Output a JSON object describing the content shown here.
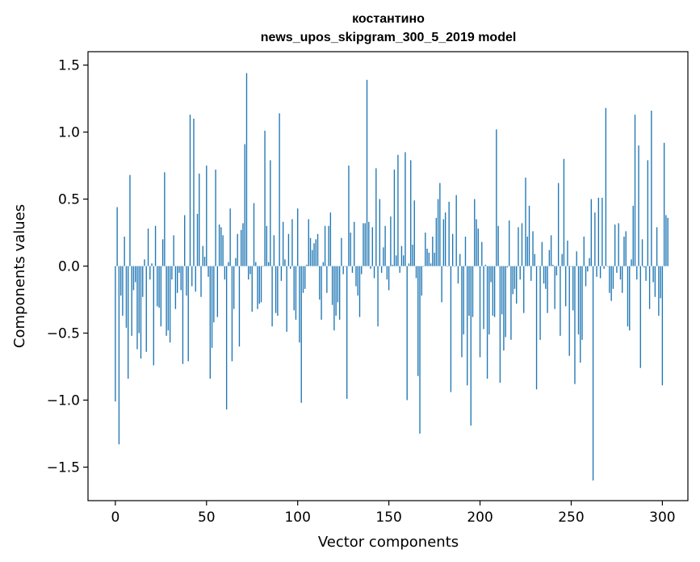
{
  "chart_data": {
    "type": "bar",
    "title": [
      "костантино",
      "news_upos_skipgram_300_5_2019 model"
    ],
    "xlabel": "Vector components",
    "ylabel": "Components values",
    "xlim": [
      -15,
      314
    ],
    "ylim": [
      -1.75,
      1.6
    ],
    "xticks": [
      0,
      50,
      100,
      150,
      200,
      250,
      300
    ],
    "xtick_labels": [
      "0",
      "50",
      "100",
      "150",
      "200",
      "250",
      "300"
    ],
    "yticks": [
      1.5,
      1.0,
      0.5,
      0.0,
      -0.5,
      -1.0,
      -1.5
    ],
    "ytick_labels": [
      "1.5",
      "1.0",
      "0.5",
      "0.0",
      "−0.5",
      "−1.0",
      "−1.5"
    ],
    "grid": false,
    "bar_color": "#1f77b4",
    "values": [
      -1.01,
      0.44,
      -1.33,
      -0.22,
      -0.37,
      0.22,
      -0.46,
      -0.84,
      0.68,
      -0.52,
      -0.18,
      -0.12,
      -0.62,
      -0.5,
      -0.69,
      -0.23,
      0.05,
      -0.64,
      0.28,
      -0.1,
      0.02,
      -0.74,
      0.3,
      -0.3,
      -0.31,
      -0.45,
      0.2,
      0.7,
      -0.52,
      -0.48,
      -0.57,
      -0.1,
      0.23,
      -0.32,
      -0.2,
      -0.05,
      -0.18,
      -0.73,
      0.38,
      -0.22,
      -0.71,
      1.13,
      -0.15,
      1.1,
      -0.19,
      0.39,
      0.69,
      -0.23,
      0.15,
      0.07,
      0.75,
      -0.08,
      -0.84,
      -0.61,
      -0.42,
      0.72,
      -0.38,
      0.31,
      0.29,
      0.23,
      -0.1,
      -1.07,
      0.03,
      0.43,
      -0.71,
      -0.32,
      0.06,
      0.24,
      -0.6,
      0.27,
      0.32,
      0.91,
      1.44,
      -0.1,
      -0.06,
      -0.34,
      0.47,
      0.03,
      -0.32,
      -0.28,
      -0.27,
      0.0,
      1.01,
      0.3,
      0.03,
      0.79,
      -0.45,
      0.23,
      -0.35,
      -0.37,
      1.14,
      -0.11,
      0.33,
      0.05,
      -0.49,
      0.24,
      -0.02,
      0.35,
      -0.33,
      -0.4,
      0.43,
      -0.57,
      -1.02,
      -0.2,
      -0.17,
      0.01,
      0.35,
      0.21,
      0.12,
      0.17,
      0.2,
      0.24,
      -0.25,
      -0.4,
      0.03,
      0.3,
      -0.2,
      0.3,
      0.4,
      -0.29,
      -0.48,
      -0.37,
      -0.27,
      -0.4,
      0.21,
      -0.06,
      0.0,
      -0.99,
      0.75,
      0.25,
      -0.05,
      0.33,
      -0.15,
      -0.22,
      -0.38,
      -0.06,
      0.32,
      0.32,
      1.39,
      0.33,
      -0.02,
      0.29,
      -0.09,
      0.73,
      -0.45,
      0.5,
      -0.05,
      0.14,
      0.3,
      -0.1,
      -0.18,
      0.37,
      0.01,
      0.72,
      0.08,
      0.83,
      -0.05,
      0.15,
      0.08,
      0.85,
      -1.0,
      0.02,
      0.79,
      0.16,
      0.49,
      -0.09,
      -0.82,
      -1.25,
      -0.22,
      0.0,
      0.25,
      0.13,
      0.1,
      0.02,
      0.22,
      0.1,
      0.36,
      0.5,
      0.62,
      -0.27,
      0.35,
      0.4,
      0.0,
      0.48,
      -0.94,
      0.24,
      0.0,
      0.53,
      -0.13,
      0.09,
      -0.68,
      -0.51,
      0.22,
      -0.89,
      -0.37,
      -1.19,
      -0.38,
      0.5,
      0.35,
      0.28,
      -0.68,
      0.18,
      -0.47,
      0.01,
      -0.84,
      -0.51,
      -0.12,
      -0.37,
      -0.38,
      1.02,
      0.3,
      -0.87,
      -0.36,
      -0.63,
      -0.53,
      -0.01,
      0.34,
      -0.55,
      -0.21,
      -0.17,
      -0.28,
      0.29,
      -0.1,
      0.32,
      -0.35,
      0.66,
      0.22,
      0.45,
      -0.11,
      0.26,
      0.09,
      -0.92,
      0.0,
      -0.55,
      0.18,
      -0.13,
      -0.17,
      -0.35,
      0.12,
      0.23,
      0.01,
      -0.32,
      -0.07,
      0.62,
      -0.52,
      0.09,
      0.8,
      -0.3,
      0.19,
      -0.67,
      0.0,
      -0.33,
      -0.88,
      0.11,
      -0.51,
      -0.72,
      -0.55,
      0.22,
      -0.15,
      -0.04,
      0.06,
      0.5,
      -1.6,
      0.4,
      -0.08,
      0.51,
      -0.09,
      0.51,
      -0.02,
      1.18,
      0.0,
      -0.2,
      -0.26,
      -0.17,
      0.31,
      -0.05,
      0.32,
      -0.1,
      -0.2,
      0.22,
      0.26,
      -0.45,
      -0.48,
      0.05,
      0.45,
      1.13,
      -0.1,
      0.9,
      -0.76,
      0.2,
      -0.01,
      -0.11,
      0.79,
      -0.32,
      1.16,
      -0.12,
      -0.23,
      0.29,
      -0.37,
      -0.24,
      -0.89,
      0.92,
      0.38,
      0.36
    ],
    "bar_width": 0.6
  }
}
